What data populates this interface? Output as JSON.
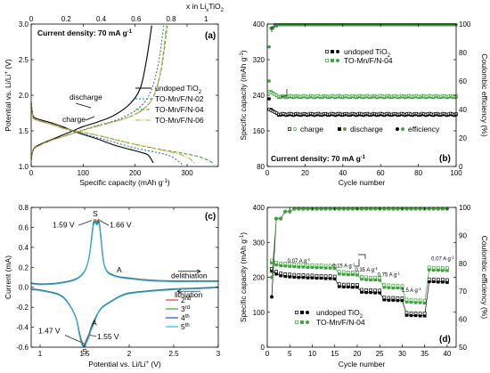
{
  "chart_data": [
    {
      "panel": "(a)",
      "type": "line",
      "xlabel": "Specific capacity (mAh g",
      "xlabel_sup": "-1",
      "xlabel_end": ")",
      "ylabel": "Potential vs. Li/Li",
      "ylabel_sup": "+",
      "ylabel_end": " (V)",
      "top_axis_label": "x in Li",
      "top_axis_label_sub": "x",
      "top_axis_label_end": "TiO",
      "top_axis_label_sub2": "2",
      "xlim": [
        0,
        360
      ],
      "ylim": [
        1,
        3
      ],
      "top_xlim": [
        0,
        1.07
      ],
      "xticks": [
        0,
        100,
        200,
        300
      ],
      "yticks": [
        1.0,
        1.5,
        2.0,
        2.5,
        3.0
      ],
      "top_xticks": [
        0,
        0.2,
        0.4,
        0.6,
        0.8,
        1.0
      ],
      "annotation_density": "Current density: 70 mA g",
      "annotation_density_sup": "-1",
      "annotations": [
        "discharge",
        "charge"
      ],
      "legend_placement": "right",
      "series": [
        {
          "name": "undoped TiO",
          "name_sub": "2",
          "color": "#000000",
          "dash": "",
          "discharge": {
            "x": [
              0,
              3,
              8,
              15,
              25,
              40,
              60,
              80,
              100,
              130,
              160,
              190,
              210,
              225,
              235
            ],
            "y": [
              1.9,
              1.72,
              1.68,
              1.66,
              1.64,
              1.61,
              1.56,
              1.5,
              1.45,
              1.38,
              1.3,
              1.24,
              1.2,
              1.16,
              1.05
            ]
          },
          "charge": {
            "x": [
              0,
              5,
              20,
              40,
              60,
              80,
              100,
              130,
              160,
              190,
              210,
              222,
              232
            ],
            "y": [
              1.1,
              1.25,
              1.32,
              1.38,
              1.44,
              1.5,
              1.56,
              1.63,
              1.72,
              1.88,
              2.1,
              2.5,
              2.98
            ]
          }
        },
        {
          "name": "TO-Mn/F/N-02",
          "color": "#1f77b4",
          "dash": "2,2",
          "discharge": {
            "x": [
              0,
              3,
              8,
              15,
              25,
              40,
              60,
              80,
              100,
              130,
              160,
              200,
              240,
              270,
              290
            ],
            "y": [
              1.9,
              1.7,
              1.66,
              1.64,
              1.62,
              1.59,
              1.54,
              1.5,
              1.46,
              1.4,
              1.34,
              1.26,
              1.2,
              1.14,
              1.03
            ]
          },
          "charge": {
            "x": [
              0,
              5,
              20,
              40,
              60,
              90,
              120,
              150,
              180,
              210,
              230,
              245,
              255
            ],
            "y": [
              1.1,
              1.24,
              1.31,
              1.37,
              1.42,
              1.49,
              1.56,
              1.62,
              1.7,
              1.84,
              2.05,
              2.45,
              2.98
            ]
          }
        },
        {
          "name": "TO-Mn/F/N-04",
          "color": "#3aa63a",
          "dash": "4,2",
          "discharge": {
            "x": [
              0,
              3,
              8,
              15,
              25,
              40,
              60,
              90,
              120,
              160,
              200,
              240,
              280,
              310,
              330,
              345,
              352
            ],
            "y": [
              1.9,
              1.7,
              1.66,
              1.64,
              1.62,
              1.59,
              1.54,
              1.49,
              1.45,
              1.38,
              1.31,
              1.25,
              1.2,
              1.16,
              1.12,
              1.07,
              1.02
            ]
          },
          "charge": {
            "x": [
              0,
              5,
              20,
              40,
              70,
              100,
              130,
              160,
              190,
              215,
              235,
              250,
              262
            ],
            "y": [
              1.1,
              1.24,
              1.31,
              1.37,
              1.44,
              1.51,
              1.57,
              1.63,
              1.7,
              1.8,
              1.98,
              2.35,
              2.98
            ]
          }
        },
        {
          "name": "TO-Mn/F/N-06",
          "color": "#e0a030",
          "dash": "6,2,1,2",
          "discharge": {
            "x": [
              0,
              3,
              8,
              15,
              25,
              40,
              60,
              90,
              120,
              160,
              200,
              240,
              270,
              290,
              305,
              315
            ],
            "y": [
              1.9,
              1.7,
              1.66,
              1.64,
              1.62,
              1.59,
              1.54,
              1.49,
              1.45,
              1.38,
              1.31,
              1.25,
              1.2,
              1.16,
              1.11,
              1.04
            ]
          },
          "charge": {
            "x": [
              0,
              5,
              20,
              40,
              70,
              100,
              130,
              160,
              190,
              215,
              235,
              250,
              260
            ],
            "y": [
              1.1,
              1.24,
              1.31,
              1.37,
              1.44,
              1.51,
              1.57,
              1.63,
              1.7,
              1.8,
              1.98,
              2.38,
              2.98
            ]
          }
        }
      ]
    },
    {
      "panel": "(b)",
      "type": "scatter",
      "xlabel": "Cycle number",
      "ylabel": "Specific capacity (mAh g",
      "ylabel_sup": "-1",
      "ylabel_end": ")",
      "y2label": "Coulombic efficiency (%)",
      "xlim": [
        0,
        100
      ],
      "ylim": [
        80,
        400
      ],
      "y2lim": [
        0,
        100
      ],
      "xticks": [
        0,
        20,
        40,
        60,
        80,
        100
      ],
      "yticks": [
        80,
        160,
        240,
        320,
        400
      ],
      "y2ticks": [
        0,
        20,
        40,
        60,
        80,
        100
      ],
      "annotation_density": "Current density: 70 mA g",
      "annotation_density_sup": "-1",
      "legend_markers": [
        "charge",
        "discharge",
        "efficiency"
      ],
      "series": [
        {
          "name": "undoped TiO",
          "name_sub": "2",
          "color": "#000000",
          "discharge_first": [
            1,
            232
          ],
          "discharge_plateau": 196,
          "charge_plateau": 198,
          "efficiency_plateau": 99.5
        },
        {
          "name": "TO-Mn/F/N-04",
          "color": "#3aa63a",
          "discharge_first": [
            1,
            272
          ],
          "discharge_plateau": 236,
          "charge_plateau": 238,
          "efficiency_plateau": 99.5
        }
      ]
    },
    {
      "panel": "(c)",
      "type": "line",
      "xlabel": "Potential vs. Li/Li",
      "xlabel_sup": "+",
      "xlabel_end": " (V)",
      "ylabel": "Current (mA)",
      "xlim": [
        0.9,
        3.0
      ],
      "ylim": [
        -0.6,
        0.8
      ],
      "xticks": [
        1.0,
        1.5,
        2.0,
        2.5,
        3.0
      ],
      "yticks": [
        -0.6,
        -0.4,
        -0.2,
        0.0,
        0.2,
        0.4,
        0.6,
        0.8
      ],
      "annotations": {
        "S_top": "S",
        "A_top": "A",
        "peak_159": "1.59 V",
        "peak_166": "1.66 V",
        "S_bottom": "S",
        "A_bottom": "A",
        "peak_147": "1.47 V",
        "peak_155": "1.55 V",
        "delithiation": "delithiation",
        "lithiation": "lithiation"
      },
      "series": [
        {
          "name": "2nd",
          "color": "#e8383d"
        },
        {
          "name": "3rd",
          "color": "#3aa63a"
        },
        {
          "name": "4th",
          "color": "#1f4fd6"
        },
        {
          "name": "5th",
          "color": "#20c0e0"
        }
      ],
      "anodic": {
        "x": [
          0.9,
          1.0,
          1.2,
          1.4,
          1.5,
          1.55,
          1.58,
          1.6,
          1.62,
          1.64,
          1.66,
          1.68,
          1.7,
          1.72,
          1.76,
          1.82,
          1.9,
          2.0,
          2.2,
          2.5,
          2.8,
          3.0
        ],
        "y": [
          0.04,
          0.03,
          0.04,
          0.08,
          0.16,
          0.3,
          0.5,
          0.64,
          0.66,
          0.64,
          0.66,
          0.52,
          0.34,
          0.22,
          0.15,
          0.12,
          0.1,
          0.09,
          0.07,
          0.06,
          0.06,
          0.06
        ]
      },
      "cathodic": {
        "x": [
          3.0,
          2.8,
          2.5,
          2.2,
          2.0,
          1.9,
          1.8,
          1.7,
          1.65,
          1.6,
          1.57,
          1.55,
          1.52,
          1.5,
          1.47,
          1.44,
          1.4,
          1.3,
          1.2,
          1.0,
          0.9
        ],
        "y": [
          0.0,
          -0.01,
          -0.02,
          -0.04,
          -0.06,
          -0.09,
          -0.14,
          -0.2,
          -0.26,
          -0.36,
          -0.42,
          -0.48,
          -0.54,
          -0.58,
          -0.56,
          -0.46,
          -0.3,
          -0.14,
          -0.07,
          -0.03,
          -0.02
        ]
      }
    },
    {
      "panel": "(d)",
      "type": "scatter",
      "xlabel": "Cycle number",
      "ylabel": "Specific capacity (mAh g",
      "ylabel_sup": "-1",
      "ylabel_end": ")",
      "y2label": "Coulombic efficiency (%)",
      "xlim": [
        0,
        42
      ],
      "ylim": [
        0,
        400
      ],
      "y2lim": [
        50,
        100
      ],
      "xticks": [
        0,
        5,
        10,
        15,
        20,
        25,
        30,
        35,
        40
      ],
      "yticks": [
        0,
        100,
        200,
        300,
        400
      ],
      "y2ticks": [
        50,
        60,
        70,
        80,
        90,
        100
      ],
      "rate_labels": [
        "0.07 A g",
        "0.15 A g",
        "0.35 A g",
        "0.75 A g",
        "1.5 A g",
        "0.07 A g"
      ],
      "rate_label_sup": "-1",
      "series": [
        {
          "name": "undoped TiO",
          "name_sub": "2",
          "color": "#000000",
          "capacity": [
            218,
            210,
            205,
            203,
            202,
            201,
            200,
            200,
            199,
            199,
            198,
            198,
            197,
            197,
            196,
            174,
            173,
            173,
            172,
            172,
            158,
            157,
            157,
            156,
            156,
            136,
            135,
            135,
            134,
            134,
            92,
            91,
            91,
            90,
            90,
            188,
            188,
            187,
            187,
            186
          ]
        },
        {
          "name": "TO-Mn/F/N-04",
          "color": "#3aa63a",
          "capacity": [
            242,
            236,
            234,
            233,
            232,
            231,
            230,
            230,
            229,
            229,
            228,
            228,
            227,
            227,
            226,
            210,
            209,
            208,
            208,
            207,
            195,
            194,
            193,
            193,
            192,
            172,
            171,
            170,
            170,
            169,
            130,
            129,
            128,
            128,
            127,
            222,
            221,
            221,
            220,
            220
          ]
        }
      ]
    }
  ]
}
